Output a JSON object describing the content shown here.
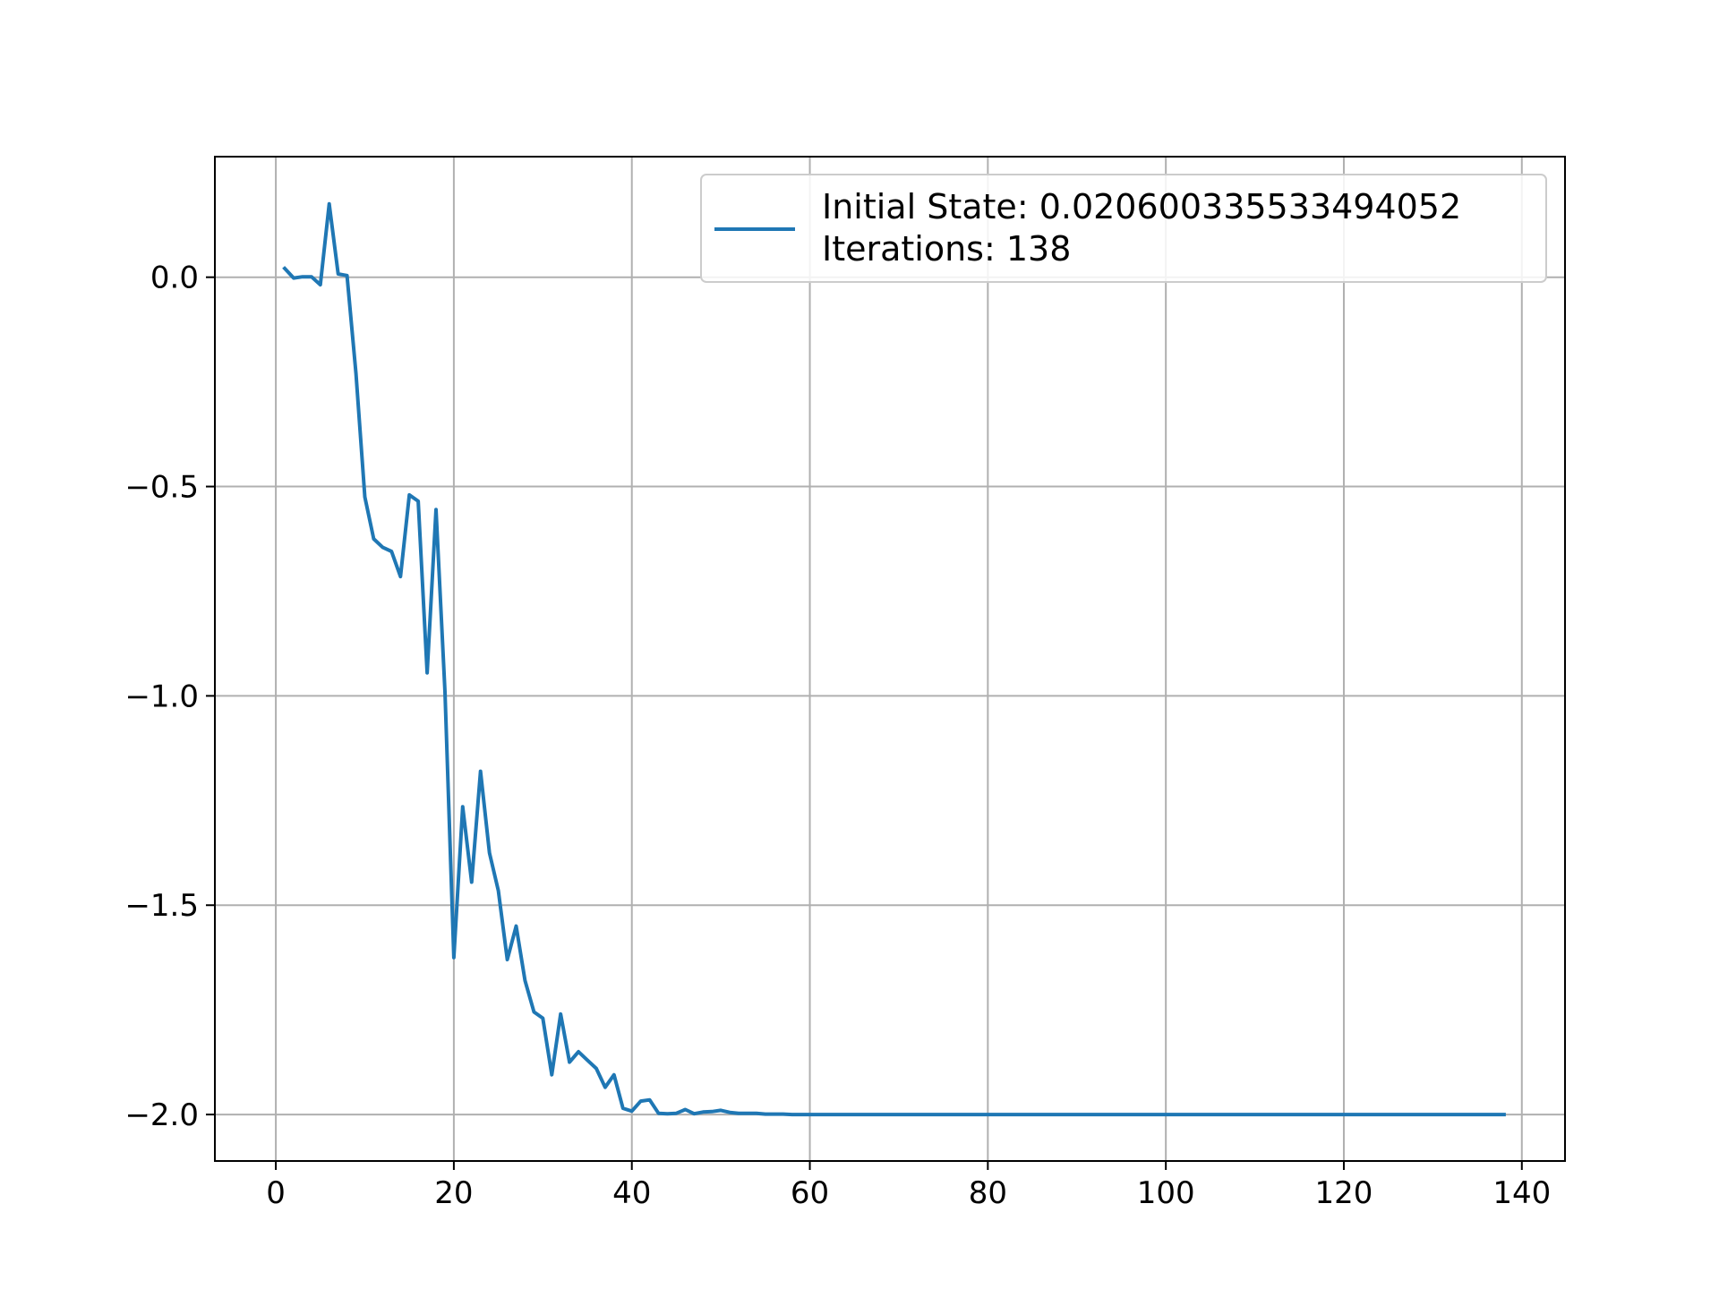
{
  "chart_data": {
    "type": "line",
    "title": "",
    "xlabel": "",
    "ylabel": "",
    "xlim": [
      -6.85,
      144.85
    ],
    "ylim": [
      -2.111,
      0.288
    ],
    "x_ticks": [
      {
        "value": 0,
        "label": "0"
      },
      {
        "value": 20,
        "label": "20"
      },
      {
        "value": 40,
        "label": "40"
      },
      {
        "value": 60,
        "label": "60"
      },
      {
        "value": 80,
        "label": "80"
      },
      {
        "value": 100,
        "label": "100"
      },
      {
        "value": 120,
        "label": "120"
      },
      {
        "value": 140,
        "label": "140"
      }
    ],
    "y_ticks": [
      {
        "value": 0.0,
        "label": "0.0"
      },
      {
        "value": -0.5,
        "label": "−0.5"
      },
      {
        "value": -1.0,
        "label": "−1.0"
      },
      {
        "value": -1.5,
        "label": "−1.5"
      },
      {
        "value": -2.0,
        "label": "−2.0"
      }
    ],
    "grid": true,
    "legend_position": "top-right",
    "legend": {
      "lines": [
        "Initial State: 0.020600335533494052",
        "Iterations: 138"
      ]
    },
    "colors": {
      "series": "#1f77b4",
      "grid": "#b0b0b0",
      "axes": "#000000",
      "legend_border": "#cccccc"
    },
    "series": [
      {
        "x": [
          1,
          2,
          3,
          4,
          5,
          6,
          7,
          8,
          9,
          10,
          11,
          12,
          13,
          14,
          15,
          16,
          17,
          18,
          19,
          20,
          21,
          22,
          23,
          24,
          25,
          26,
          27,
          28,
          29,
          30,
          31,
          32,
          33,
          34,
          35,
          36,
          37,
          38,
          39,
          40,
          41,
          42,
          43,
          44,
          45,
          46,
          47,
          48,
          49,
          50,
          51,
          52,
          53,
          54,
          55,
          56,
          57,
          58,
          59,
          60,
          61,
          62,
          63,
          64,
          65,
          66,
          67,
          68,
          69,
          70,
          71,
          72,
          73,
          74,
          75,
          76,
          77,
          78,
          79,
          80,
          81,
          82,
          83,
          84,
          85,
          86,
          87,
          88,
          89,
          90,
          91,
          92,
          93,
          94,
          95,
          96,
          97,
          98,
          99,
          100,
          101,
          102,
          103,
          104,
          105,
          106,
          107,
          108,
          109,
          110,
          111,
          112,
          113,
          114,
          115,
          116,
          117,
          118,
          119,
          120,
          121,
          122,
          123,
          124,
          125,
          126,
          127,
          128,
          129,
          130,
          131,
          132,
          133,
          134,
          135,
          136,
          137,
          138
        ],
        "y": [
          0.021,
          -0.002,
          0.001,
          0.001,
          -0.018,
          0.175,
          0.008,
          0.004,
          -0.23,
          -0.525,
          -0.625,
          -0.645,
          -0.655,
          -0.715,
          -0.52,
          -0.535,
          -0.945,
          -0.555,
          -0.99,
          -1.625,
          -1.265,
          -1.445,
          -1.18,
          -1.375,
          -1.465,
          -1.63,
          -1.55,
          -1.68,
          -1.755,
          -1.77,
          -1.905,
          -1.76,
          -1.875,
          -1.85,
          -1.87,
          -1.89,
          -1.935,
          -1.905,
          -1.985,
          -1.992,
          -1.968,
          -1.965,
          -1.997,
          -1.998,
          -1.997,
          -1.988,
          -1.998,
          -1.994,
          -1.993,
          -1.99,
          -1.995,
          -1.997,
          -1.997,
          -1.997,
          -1.999,
          -1.999,
          -1.999,
          -2.0,
          -2.0,
          -2.0,
          -2.0,
          -2.0,
          -2.0,
          -2.0,
          -2.0,
          -2.0,
          -2.0,
          -2.0,
          -2.0,
          -2.0,
          -2.0,
          -2.0,
          -2.0,
          -2.0,
          -2.0,
          -2.0,
          -2.0,
          -2.0,
          -2.0,
          -2.0,
          -2.0,
          -2.0,
          -2.0,
          -2.0,
          -2.0,
          -2.0,
          -2.0,
          -2.0,
          -2.0,
          -2.0,
          -2.0,
          -2.0,
          -2.0,
          -2.0,
          -2.0,
          -2.0,
          -2.0,
          -2.0,
          -2.0,
          -2.0,
          -2.0,
          -2.0,
          -2.0,
          -2.0,
          -2.0,
          -2.0,
          -2.0,
          -2.0,
          -2.0,
          -2.0,
          -2.0,
          -2.0,
          -2.0,
          -2.0,
          -2.0,
          -2.0,
          -2.0,
          -2.0,
          -2.0,
          -2.0,
          -2.0,
          -2.0,
          -2.0,
          -2.0,
          -2.0,
          -2.0,
          -2.0,
          -2.0,
          -2.0,
          -2.0,
          -2.0,
          -2.0,
          -2.0,
          -2.0,
          -2.0,
          -2.0,
          -2.0,
          -2.0
        ]
      }
    ]
  }
}
